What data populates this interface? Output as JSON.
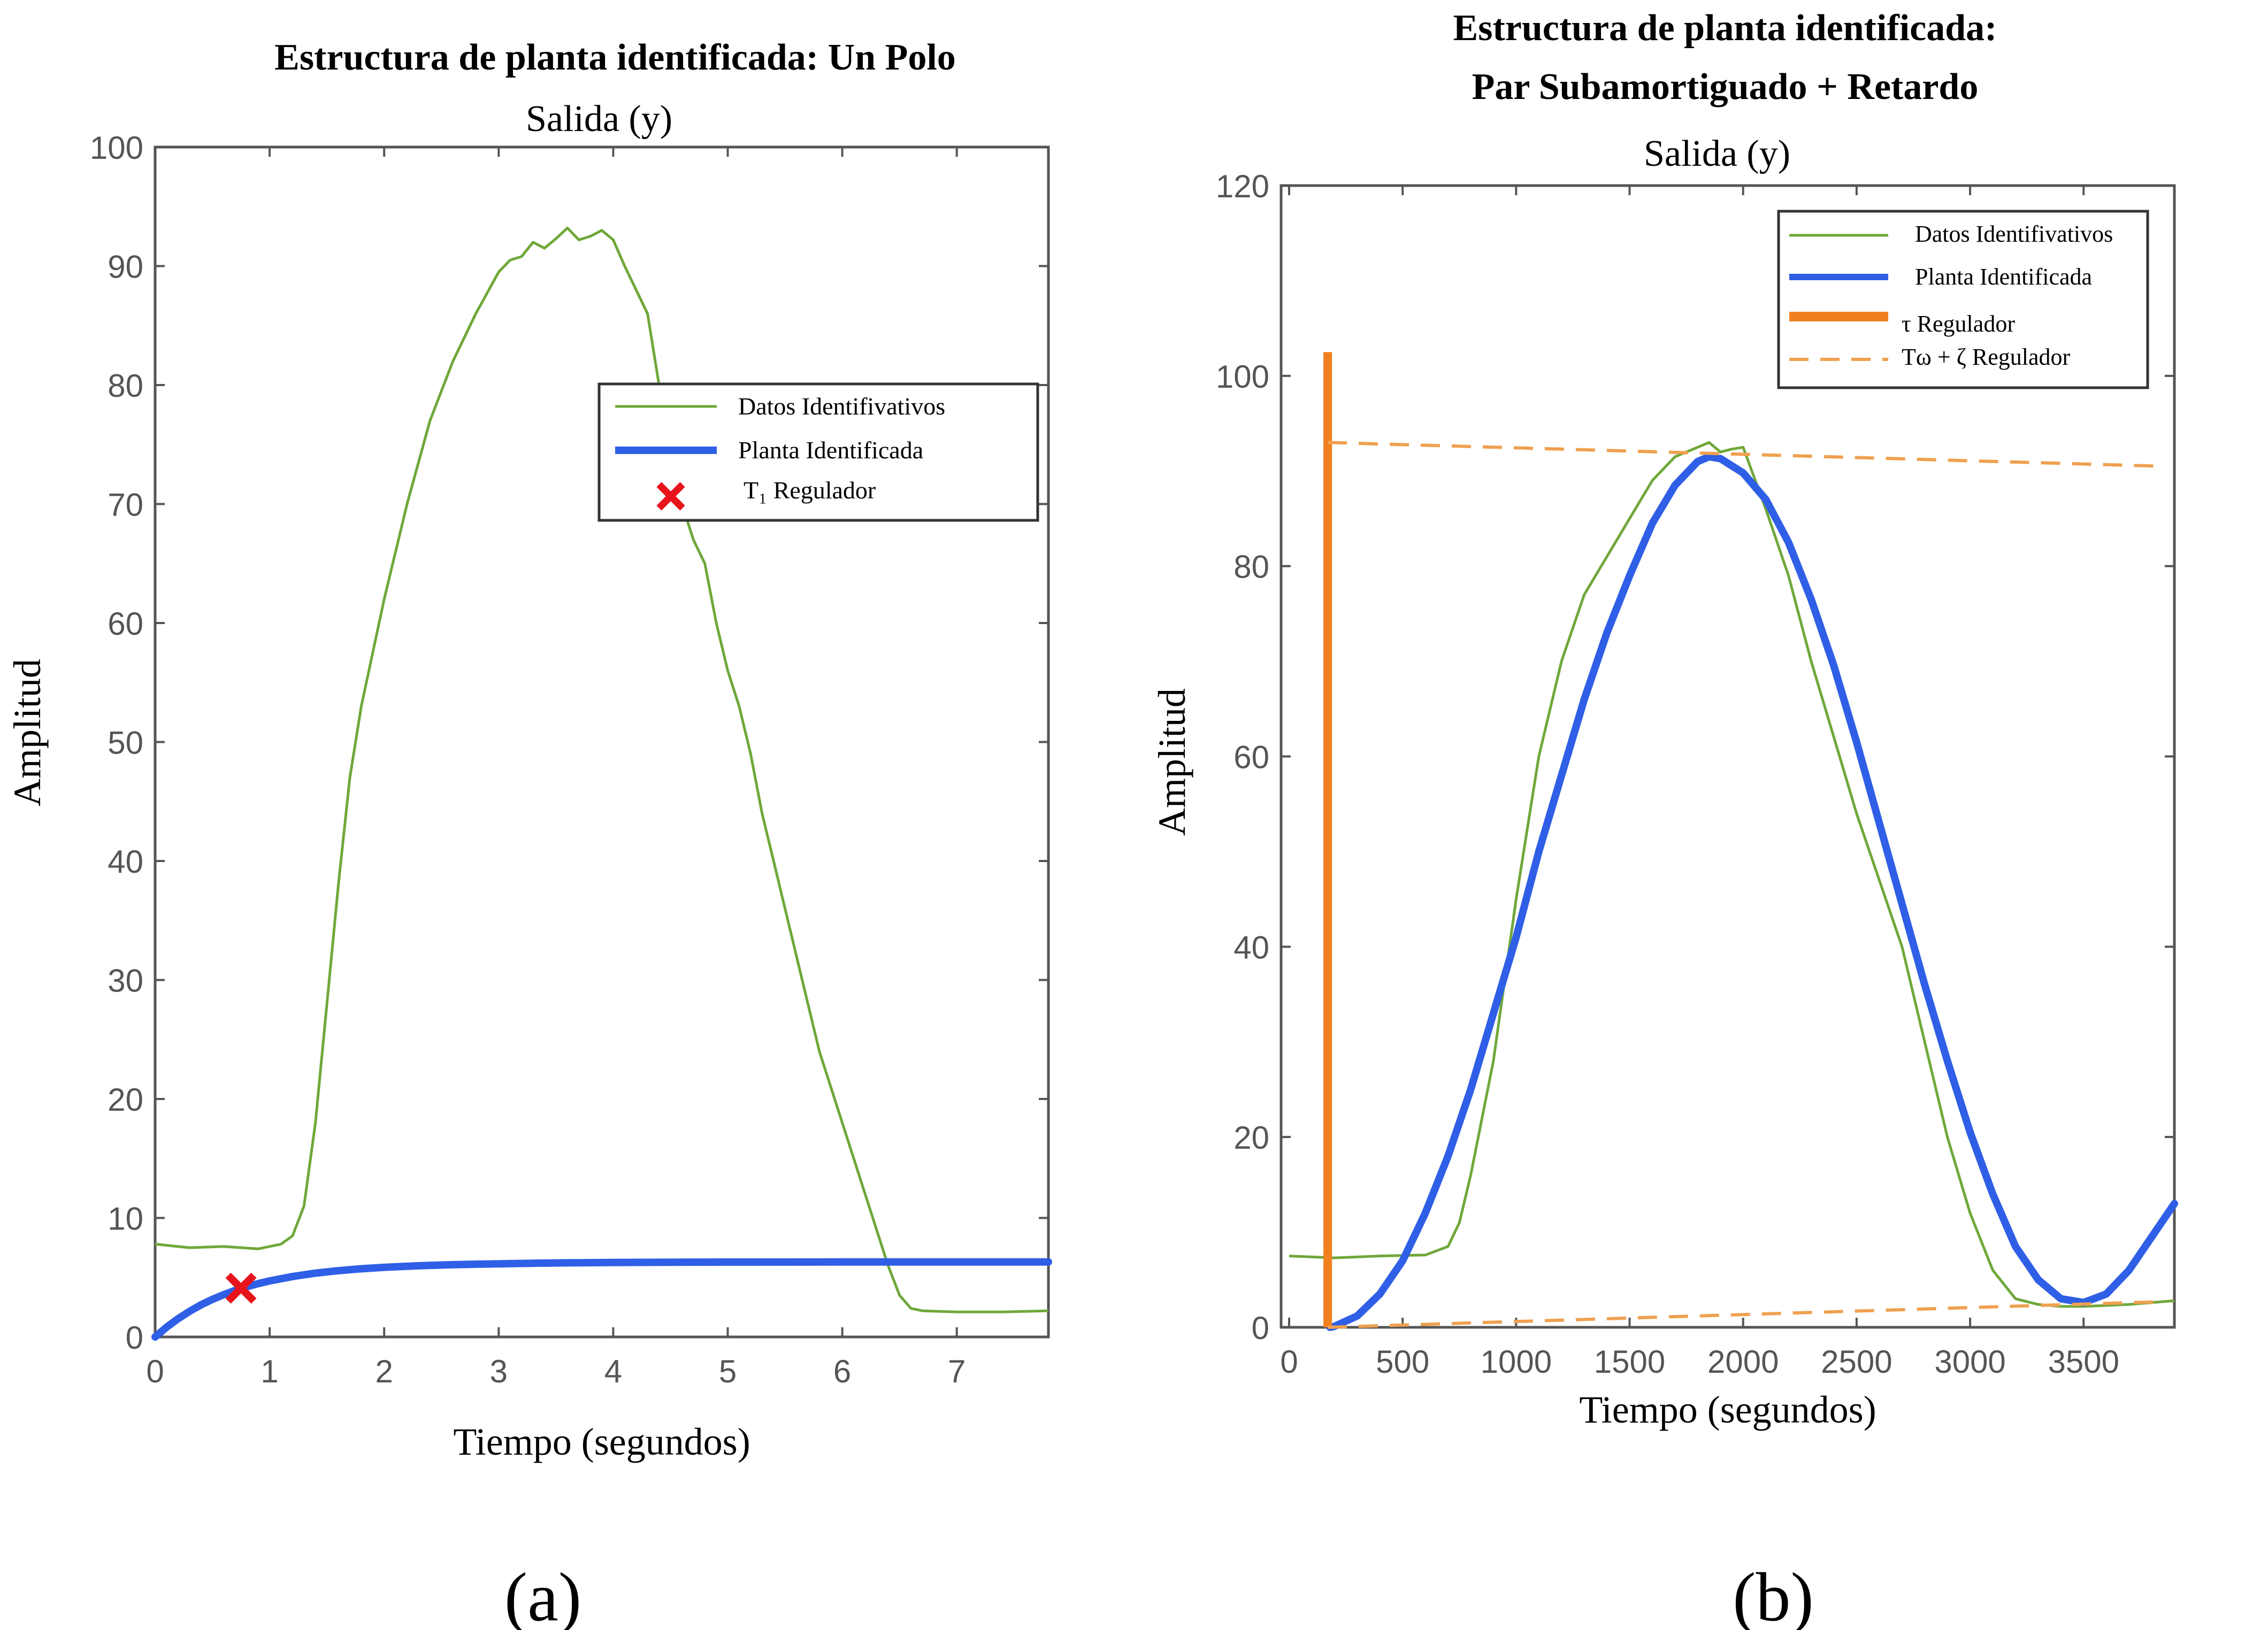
{
  "chart_data": [
    {
      "type": "line",
      "panel_label": "(a)",
      "title": "Estructura de planta identificada: Un Polo",
      "subtitle": "Salida (y)",
      "xlabel": "Tiempo (segundos)",
      "ylabel": "Amplitud",
      "xlim": [
        0,
        7.8
      ],
      "ylim": [
        0,
        100
      ],
      "xticks": [
        0,
        1,
        2,
        3,
        4,
        5,
        6,
        7
      ],
      "yticks": [
        0,
        10,
        20,
        30,
        40,
        50,
        60,
        70,
        80,
        90,
        100
      ],
      "grid": false,
      "legend_position": "upper-right",
      "colors": {
        "data": "#6fa83a",
        "plant": "#2f5fe6",
        "marker": "#e8141c"
      },
      "series": [
        {
          "name": "Datos Identifivativos",
          "style": "thin-green",
          "x": [
            0,
            0.3,
            0.6,
            0.9,
            1.1,
            1.2,
            1.3,
            1.4,
            1.5,
            1.6,
            1.7,
            1.8,
            2.0,
            2.2,
            2.4,
            2.6,
            2.8,
            3.0,
            3.1,
            3.2,
            3.3,
            3.4,
            3.5,
            3.6,
            3.7,
            3.8,
            3.9,
            4.0,
            4.1,
            4.2,
            4.3,
            4.4,
            4.5,
            4.6,
            4.7,
            4.8,
            4.9,
            5.0,
            5.1,
            5.2,
            5.3,
            5.4,
            5.6,
            5.8,
            6.0,
            6.2,
            6.4,
            6.5,
            6.6,
            6.7,
            7.0,
            7.4,
            7.8
          ],
          "y": [
            7.8,
            7.5,
            7.6,
            7.4,
            7.8,
            8.5,
            11,
            18,
            28,
            38,
            47,
            53,
            62,
            70,
            77,
            82,
            86,
            89.5,
            90.5,
            90.8,
            92,
            91.5,
            92.3,
            93.2,
            92.2,
            92.5,
            93,
            92.2,
            90,
            88,
            86,
            80,
            75,
            70,
            67,
            65,
            60,
            56,
            53,
            49,
            44,
            40,
            32,
            24,
            18,
            12,
            6,
            3.5,
            2.4,
            2.2,
            2.1,
            2.1,
            2.2
          ]
        },
        {
          "name": "Planta Identificada",
          "style": "thick-blue",
          "equation_note": "first-order step response, gain 6.3",
          "x": [
            0,
            0.1,
            0.2,
            0.3,
            0.4,
            0.5,
            0.6,
            0.7,
            0.8,
            0.9,
            1.0,
            1.2,
            1.4,
            1.6,
            1.8,
            2.0,
            2.3,
            2.6,
            3.0,
            3.5,
            4.0,
            5.0,
            6.0,
            7.0,
            7.8
          ],
          "y": [
            0,
            0.82,
            1.53,
            2.15,
            2.69,
            3.16,
            3.56,
            3.91,
            4.22,
            4.48,
            4.71,
            5.08,
            5.36,
            5.57,
            5.73,
            5.85,
            5.98,
            6.07,
            6.15,
            6.22,
            6.26,
            6.29,
            6.3,
            6.3,
            6.3
          ]
        },
        {
          "name": "T₁  Regulador",
          "style": "red-x",
          "x": [
            0.75
          ],
          "y": [
            4.1
          ]
        }
      ]
    },
    {
      "type": "line",
      "panel_label": "(b)",
      "title": "Estructura de planta identificada:",
      "title_line2": "Par Subamortiguado + Retardo",
      "subtitle": "Salida (y)",
      "xlabel": "Tiempo (segundos)",
      "ylabel": "Amplitud",
      "xlim": [
        0,
        3900
      ],
      "ylim": [
        0,
        120
      ],
      "xticks": [
        0,
        500,
        1000,
        1500,
        2000,
        2500,
        3000,
        3500
      ],
      "yticks": [
        0,
        20,
        40,
        60,
        80,
        100,
        120
      ],
      "grid": false,
      "legend_position": "upper-right",
      "colors": {
        "data": "#6fa83a",
        "plant": "#2f5fe6",
        "regulator": "#f07f1e",
        "dashed": "#f0a050"
      },
      "series": [
        {
          "name": "Datos Identifivativos",
          "style": "thin-green",
          "x": [
            0,
            200,
            400,
            600,
            700,
            750,
            800,
            900,
            1000,
            1100,
            1200,
            1300,
            1400,
            1500,
            1600,
            1700,
            1750,
            1800,
            1850,
            1900,
            1950,
            2000,
            2100,
            2200,
            2300,
            2400,
            2500,
            2600,
            2700,
            2800,
            2900,
            3000,
            3100,
            3200,
            3300,
            3400,
            3500,
            3600,
            3700,
            3800,
            3900
          ],
          "y": [
            7.5,
            7.3,
            7.5,
            7.6,
            8.5,
            11,
            16,
            28,
            45,
            60,
            70,
            77,
            81,
            85,
            89,
            91.5,
            92,
            92.5,
            93,
            92,
            92.3,
            92.5,
            86,
            79,
            70,
            62,
            54,
            47,
            40,
            30,
            20,
            12,
            6,
            3,
            2.4,
            2.2,
            2.2,
            2.3,
            2.4,
            2.6,
            2.8
          ]
        },
        {
          "name": "Planta Identificada",
          "style": "thick-blue",
          "x": [
            180,
            200,
            300,
            400,
            500,
            600,
            700,
            800,
            900,
            1000,
            1100,
            1200,
            1300,
            1400,
            1500,
            1600,
            1700,
            1800,
            1850,
            1900,
            2000,
            2100,
            2200,
            2300,
            2400,
            2500,
            2600,
            2700,
            2800,
            2900,
            3000,
            3100,
            3200,
            3300,
            3400,
            3500,
            3600,
            3700,
            3800,
            3900
          ],
          "y": [
            0,
            0.1,
            1.2,
            3.5,
            7,
            12,
            18,
            25,
            33,
            41,
            50,
            58,
            66,
            73,
            79,
            84.5,
            88.5,
            91,
            91.5,
            91.3,
            89.8,
            87,
            82.5,
            76.5,
            69.5,
            61.5,
            53,
            44.5,
            36,
            28,
            20.5,
            14,
            8.5,
            5,
            3,
            2.6,
            3.5,
            6,
            9.5,
            13
          ]
        },
        {
          "name": "τ  Regulador",
          "style": "thick-orange-vertical",
          "x": [
            170,
            170
          ],
          "y": [
            0,
            102.5
          ]
        },
        {
          "name": "Tω  +  ζ  Regulador",
          "style": "dashed-orange",
          "segments": [
            {
              "x": [
                170,
                3850
              ],
              "y": [
                93,
                90.5
              ]
            },
            {
              "x": [
                170,
                3850
              ],
              "y": [
                0,
                2.7
              ]
            }
          ]
        }
      ]
    }
  ]
}
